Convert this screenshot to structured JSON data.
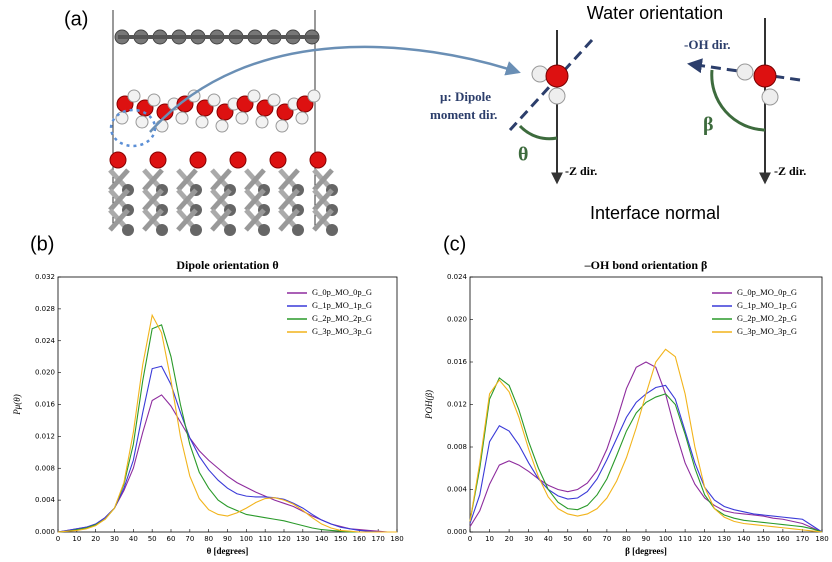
{
  "diagram": {
    "label": "(a)",
    "title": "Water orientation",
    "oh_dir": "-OH dir.",
    "mu_line1": "μ: Dipole",
    "mu_line2": "moment dir.",
    "theta": "θ",
    "beta": "β",
    "z_dir_left": "-Z dir.",
    "z_dir_right": "-Z dir.",
    "footer": "Interface normal"
  },
  "chart_data": [
    {
      "type": "line",
      "panel_label": "(b)",
      "title": "Dipole orientation θ",
      "xlabel": "θ [degrees]",
      "ylabel": "Pμ(θ)",
      "xlim": [
        0,
        180
      ],
      "xticks": [
        0,
        10,
        20,
        30,
        40,
        50,
        60,
        70,
        80,
        90,
        100,
        110,
        120,
        130,
        140,
        150,
        160,
        170,
        180
      ],
      "ylim": [
        0,
        0.032
      ],
      "yticks": [
        {
          "value": 0,
          "label": "0.000"
        },
        0.004,
        0.008,
        0.012,
        0.016,
        {
          "value": 0.02,
          "label": "0.020"
        },
        0.024,
        0.028,
        0.032
      ],
      "legend": "upper right",
      "x": [
        0,
        5,
        10,
        15,
        20,
        25,
        30,
        35,
        40,
        45,
        50,
        55,
        60,
        65,
        70,
        75,
        80,
        85,
        90,
        95,
        100,
        105,
        110,
        115,
        120,
        125,
        130,
        135,
        140,
        145,
        150,
        155,
        160,
        165,
        170,
        175,
        180
      ],
      "series": [
        {
          "name": "G_0p_MO_0p_G",
          "color": "#8e2c9e",
          "values": [
            0,
            0.0002,
            0.0004,
            0.0006,
            0.001,
            0.0018,
            0.003,
            0.0052,
            0.008,
            0.0125,
            0.0165,
            0.0172,
            0.0158,
            0.0138,
            0.0118,
            0.0102,
            0.009,
            0.008,
            0.007,
            0.0062,
            0.0056,
            0.005,
            0.0045,
            0.004,
            0.0036,
            0.0032,
            0.0026,
            0.002,
            0.0015,
            0.001,
            0.0007,
            0.0004,
            0.0003,
            0.0002,
            0.0001,
            0,
            0
          ]
        },
        {
          "name": "G_1p_MO_1p_G",
          "color": "#3a3ad8",
          "values": [
            0,
            0.0002,
            0.0004,
            0.0006,
            0.001,
            0.0018,
            0.003,
            0.0055,
            0.009,
            0.015,
            0.0205,
            0.0208,
            0.0185,
            0.015,
            0.0118,
            0.0095,
            0.0078,
            0.0065,
            0.0055,
            0.0048,
            0.0045,
            0.0044,
            0.0044,
            0.0043,
            0.0041,
            0.0036,
            0.003,
            0.0022,
            0.0015,
            0.001,
            0.0006,
            0.0004,
            0.0002,
            0.0001,
            0,
            0,
            0
          ]
        },
        {
          "name": "G_2p_MO_2p_G",
          "color": "#2a9a2a",
          "values": [
            0,
            0.0001,
            0.0003,
            0.0005,
            0.0009,
            0.0016,
            0.003,
            0.006,
            0.011,
            0.019,
            0.0255,
            0.026,
            0.022,
            0.016,
            0.011,
            0.0075,
            0.0055,
            0.004,
            0.0032,
            0.0027,
            0.0022,
            0.002,
            0.0018,
            0.0016,
            0.0014,
            0.0011,
            0.0008,
            0.0005,
            0.0003,
            0.0002,
            0.0001,
            0,
            0,
            0,
            0,
            0,
            0
          ]
        },
        {
          "name": "G_3p_MO_3p_G",
          "color": "#f2b41c",
          "values": [
            0,
            0.0001,
            0.0002,
            0.0004,
            0.0008,
            0.0016,
            0.003,
            0.0062,
            0.0125,
            0.021,
            0.0272,
            0.025,
            0.019,
            0.012,
            0.007,
            0.0042,
            0.0028,
            0.0022,
            0.002,
            0.0024,
            0.003,
            0.0037,
            0.0042,
            0.0043,
            0.004,
            0.0035,
            0.0027,
            0.0018,
            0.001,
            0.0005,
            0.0002,
            0.0001,
            0,
            0,
            0,
            0,
            0
          ]
        }
      ]
    },
    {
      "type": "line",
      "panel_label": "(c)",
      "title": "–OH bond orientation β",
      "xlabel": "β [degrees]",
      "ylabel": "POH(β)",
      "xlim": [
        0,
        180
      ],
      "xticks": [
        0,
        10,
        20,
        30,
        40,
        50,
        60,
        70,
        80,
        90,
        100,
        110,
        120,
        130,
        140,
        150,
        160,
        170,
        180
      ],
      "ylim": [
        0,
        0.024
      ],
      "yticks": [
        {
          "value": 0,
          "label": "0.000"
        },
        0.004,
        0.008,
        0.012,
        0.016,
        {
          "value": 0.02,
          "label": "0.020"
        },
        0.024
      ],
      "legend": "upper right",
      "x": [
        0,
        5,
        10,
        15,
        20,
        25,
        30,
        35,
        40,
        45,
        50,
        55,
        60,
        65,
        70,
        75,
        80,
        85,
        90,
        95,
        100,
        105,
        110,
        115,
        120,
        125,
        130,
        135,
        140,
        145,
        150,
        155,
        160,
        165,
        170,
        175,
        180
      ],
      "series": [
        {
          "name": "G_0p_MO_0p_G",
          "color": "#8e2c9e",
          "values": [
            0.0005,
            0.002,
            0.0045,
            0.0063,
            0.0067,
            0.0063,
            0.0057,
            0.005,
            0.0044,
            0.004,
            0.0038,
            0.004,
            0.0046,
            0.0058,
            0.0078,
            0.0105,
            0.0135,
            0.0155,
            0.016,
            0.0155,
            0.013,
            0.0095,
            0.0065,
            0.0045,
            0.0032,
            0.0025,
            0.002,
            0.0018,
            0.0017,
            0.0016,
            0.0015,
            0.0013,
            0.0012,
            0.001,
            0.0008,
            0.0004,
            0
          ]
        },
        {
          "name": "G_1p_MO_1p_G",
          "color": "#3a3ad8",
          "values": [
            0.0008,
            0.0035,
            0.0085,
            0.01,
            0.0095,
            0.0082,
            0.0065,
            0.005,
            0.004,
            0.0034,
            0.0031,
            0.0032,
            0.0038,
            0.005,
            0.0068,
            0.0088,
            0.0108,
            0.0122,
            0.013,
            0.0136,
            0.0138,
            0.0125,
            0.0095,
            0.0065,
            0.0042,
            0.003,
            0.0024,
            0.0021,
            0.0019,
            0.0017,
            0.0016,
            0.0015,
            0.0014,
            0.0013,
            0.0012,
            0.0006,
            0
          ]
        },
        {
          "name": "G_2p_MO_2p_G",
          "color": "#2a9a2a",
          "values": [
            0.001,
            0.006,
            0.0125,
            0.0145,
            0.0138,
            0.0115,
            0.0085,
            0.006,
            0.004,
            0.0028,
            0.0022,
            0.0021,
            0.0025,
            0.0035,
            0.005,
            0.0072,
            0.0095,
            0.0112,
            0.0122,
            0.0127,
            0.013,
            0.012,
            0.0092,
            0.006,
            0.0035,
            0.0022,
            0.0016,
            0.0013,
            0.0011,
            0.001,
            0.0009,
            0.0008,
            0.0007,
            0.0006,
            0.0005,
            0.0003,
            0
          ]
        },
        {
          "name": "G_3p_MO_3p_G",
          "color": "#f2b41c",
          "values": [
            0.001,
            0.0065,
            0.013,
            0.0143,
            0.0132,
            0.0108,
            0.0078,
            0.0052,
            0.0033,
            0.0022,
            0.0017,
            0.0015,
            0.0017,
            0.0022,
            0.0032,
            0.0048,
            0.007,
            0.0098,
            0.013,
            0.016,
            0.0172,
            0.0165,
            0.013,
            0.008,
            0.0042,
            0.0022,
            0.0014,
            0.001,
            0.0008,
            0.0007,
            0.0006,
            0.0005,
            0.0004,
            0.0003,
            0.0002,
            0.0001,
            0
          ]
        }
      ]
    }
  ]
}
